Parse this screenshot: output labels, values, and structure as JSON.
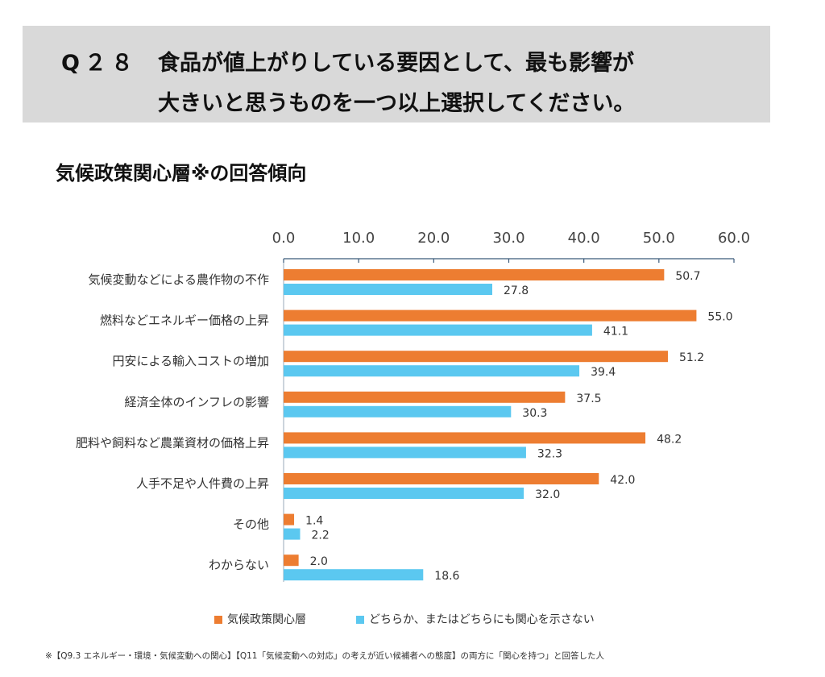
{
  "question": {
    "number": "Q２８",
    "line1": "食品が値上がりしている要因として、最も影響が",
    "line2": "大きいと思うものを一つ以上選択してください。"
  },
  "subtitle": "気候政策関心層※の回答傾向",
  "legend": {
    "series1": "気候政策関心層",
    "series2": "どちらか、またはどちらにも関心を示さない"
  },
  "footnote": "※【Q9.3 エネルギー・環境・気候変動への関心】【Q11「気候変動への対応」の考えが近い候補者への態度】の両方に「関心を持つ」と回答した人",
  "colors": {
    "series1": "#ed7d31",
    "series2": "#5bc8f0",
    "axis": "#3a5a7a",
    "text": "#333333"
  },
  "chart_data": {
    "type": "bar",
    "orientation": "horizontal",
    "categories": [
      "気候変動などによる農作物の不作",
      "燃料などエネルギー価格の上昇",
      "円安による輸入コストの増加",
      "経済全体のインフレの影響",
      "肥料や飼料など農業資材の価格上昇",
      "人手不足や人件費の上昇",
      "その他",
      "わからない"
    ],
    "series": [
      {
        "name": "気候政策関心層",
        "values": [
          50.7,
          55.0,
          51.2,
          37.5,
          48.2,
          42.0,
          1.4,
          2.0
        ]
      },
      {
        "name": "どちらか、またはどちらにも関心を示さない",
        "values": [
          27.8,
          41.1,
          39.4,
          30.3,
          32.3,
          32.0,
          2.2,
          18.6
        ]
      }
    ],
    "xlim": [
      0,
      60
    ],
    "ticks": [
      "0.0",
      "10.0",
      "20.0",
      "30.0",
      "40.0",
      "50.0",
      "60.0"
    ],
    "tick_values": [
      0,
      10,
      20,
      30,
      40,
      50,
      60
    ],
    "axis_position": "top",
    "grid": false,
    "legend_position": "bottom"
  }
}
